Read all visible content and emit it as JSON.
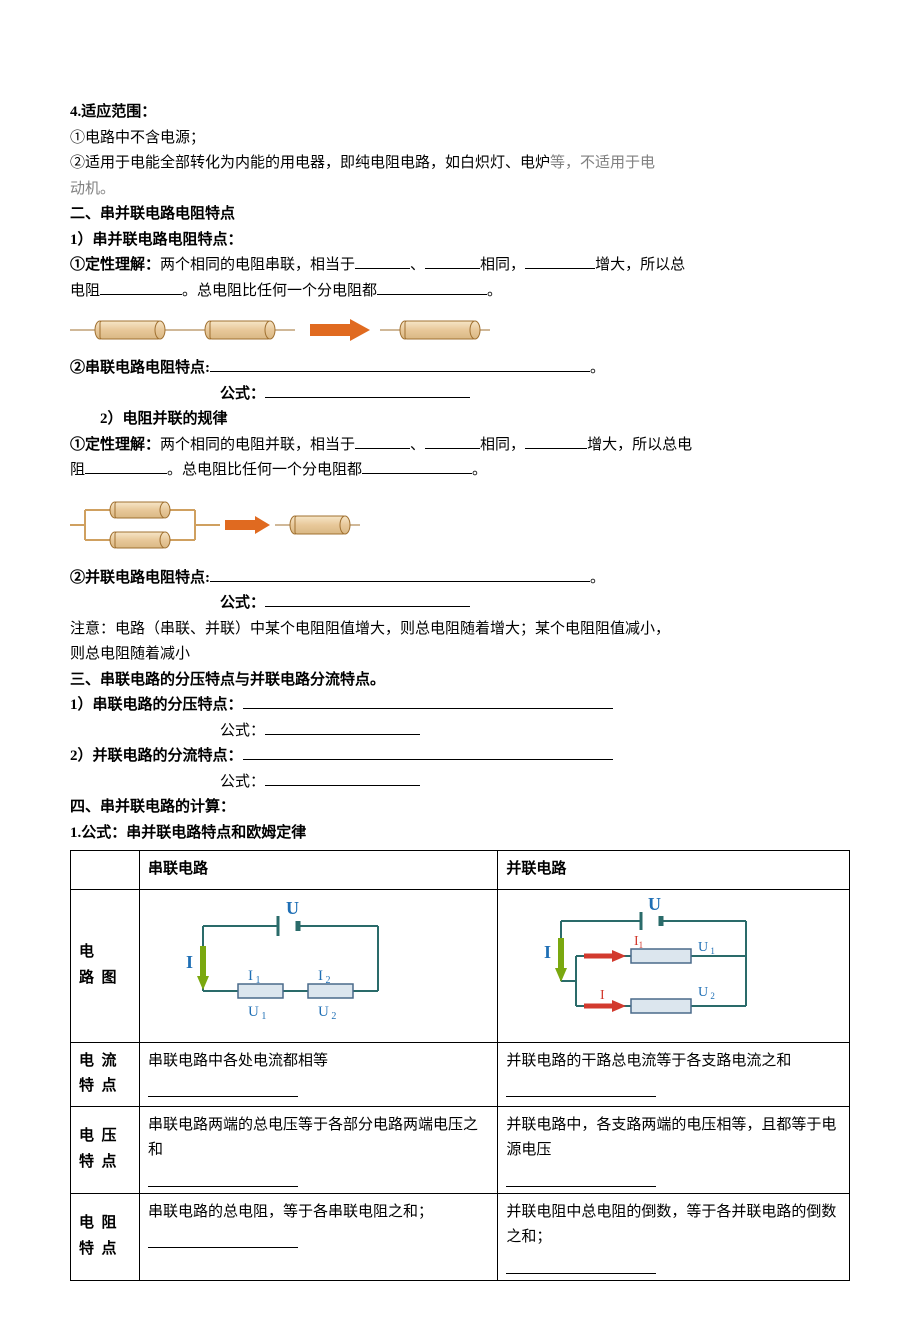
{
  "s4": {
    "heading": "4.适应范围：",
    "item1_prefix": "①电路中不含电源；",
    "item2_prefix": "②适用于电能全部转化为内能的用电器，即纯电阻电路，如白炽灯、电炉",
    "item2_gray": "等，不适用于电",
    "item2_line2": "动机。"
  },
  "s2_title": "二、串并联电路电阻特点",
  "s2_1": {
    "heading": "1）串并联电路电阻特点：",
    "q_label": "①定性理解：",
    "q_a": "两个相同的电阻串联，相当于",
    "q_b": "、",
    "q_c": "相同，",
    "q_d": "增大，所以总",
    "line2a": "电阻",
    "line2b": "。总电阻比任何一个分电阻都",
    "line2c": "。",
    "char_label": "②串联电路电阻特点:",
    "char_end": "。",
    "formula_label": "公式：",
    "img_series": {
      "resistor_color": "#e8c89a",
      "stroke_color": "#a07030",
      "arrow_color": "#e06a20"
    }
  },
  "s2_2": {
    "heading": "2）电阻并联的规律",
    "q_label": "①定性理解：",
    "q_a": "两个相同的电阻并联，相当于",
    "q_b": "、",
    "q_c": "相同，",
    "q_d": "增大，所以总电",
    "line2a": "阻",
    "line2b": "。总电阻比任何一个分电阻都",
    "line2c": "。",
    "char_label": "②并联电路电阻特点:",
    "char_end": "。",
    "formula_label": "公式：",
    "img_parallel": {
      "resistor_color": "#e8c89a",
      "stroke_color": "#a07030",
      "arrow_color": "#e06a20",
      "wire_color": "#cfa060"
    }
  },
  "note": {
    "t1": "注意：电路（串联、并联）中某个电阻阻值增大，则总电阻随着增大；某个电阻阻值减小，",
    "t2": "则总电阻随着减小"
  },
  "s3_title": "三、串联电路的分压特点与并联电路分流特点。",
  "s3_1": {
    "heading": "1）串联电路的分压特点：",
    "formula_label": "公式："
  },
  "s3_2": {
    "heading": "2）并联电路的分流特点：",
    "formula_label": "公式："
  },
  "s4b_title": "四、串并联电路的计算：",
  "s4b_sub": "1.公式：串并联电路特点和欧姆定律",
  "table": {
    "head_series": "串联电路",
    "head_parallel": "并联电路",
    "row1_label": "电　路图",
    "row2_label": "电流特点",
    "row2_series": "串联电路中各处电流都相等",
    "row2_parallel": "并联电路的干路总电流等于各支路电流之和",
    "row3_label": "电压特点",
    "row3_series": "串联电路两端的总电压等于各部分电路两端电压之和",
    "row3_parallel": "并联电路中，各支路两端的电压相等，且都等于电源电压",
    "row4_label": "电阻特点",
    "row4_series": "串联电路的总电阻，等于各串联电阻之和；",
    "row4_parallel": "并联电阻中总电阻的倒数，等于各并联电路的倒数之和；",
    "colors": {
      "label_blue": "#1f6fb5",
      "label_red": "#d23a2e",
      "wire": "#2a6b6a",
      "resistor_stroke": "#4a6a8a",
      "resistor_fill": "#dce6ee",
      "arrow_green": "#7aa80f",
      "arrow_red": "#d23a2e",
      "battery": "#2a6b6a"
    },
    "labels": {
      "U": "U",
      "I": "I",
      "I1": "I",
      "I2": "I",
      "U1": "U",
      "U2": "U",
      "sub1": "1",
      "sub2": "2"
    }
  },
  "blanks": {
    "w40": 48,
    "w55": 55,
    "w60": 62,
    "w68": 70,
    "w80": 82,
    "w90": 95,
    "w110": 110,
    "w150": 155,
    "w200": 205,
    "w360": 370,
    "w380": 380
  }
}
